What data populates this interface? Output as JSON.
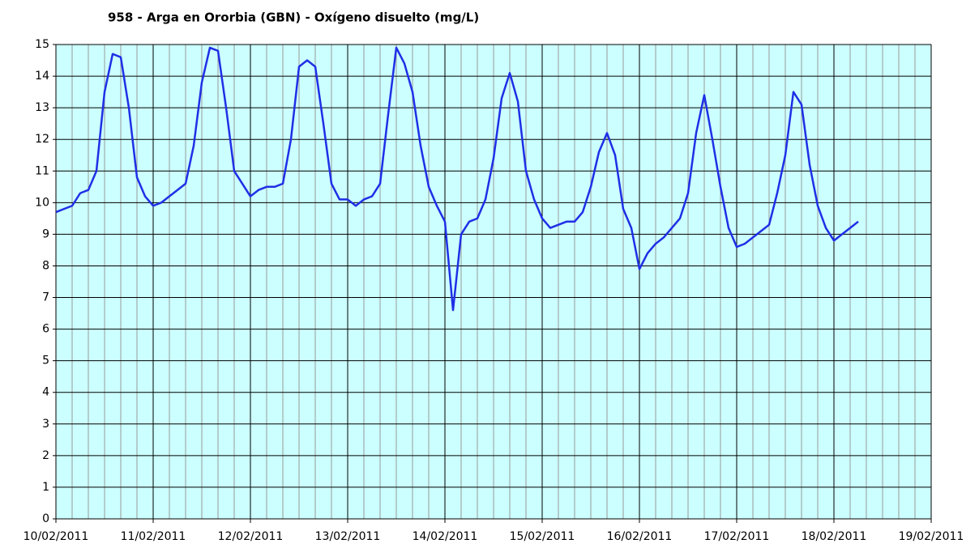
{
  "chart_data": {
    "type": "line",
    "title": "958 - Arga en Ororbia (GBN) - Oxígeno disuelto (mg/L)",
    "categories": [
      "10/02/2011",
      null,
      null,
      null,
      null,
      null,
      null,
      null,
      null,
      null,
      null,
      null,
      "11/02/2011",
      null,
      null,
      null,
      null,
      null,
      null,
      null,
      null,
      null,
      null,
      null,
      "12/02/2011",
      null,
      null,
      null,
      null,
      null,
      null,
      null,
      null,
      null,
      null,
      null,
      "13/02/2011",
      null,
      null,
      null,
      null,
      null,
      null,
      null,
      null,
      null,
      null,
      null,
      "14/02/2011",
      null,
      null,
      null,
      null,
      null,
      null,
      null,
      null,
      null,
      null,
      null,
      "15/02/2011",
      null,
      null,
      null,
      null,
      null,
      null,
      null,
      null,
      null,
      null,
      null,
      "16/02/2011",
      null,
      null,
      null,
      null,
      null,
      null,
      null,
      null,
      null,
      null,
      null,
      "17/02/2011",
      null,
      null,
      null,
      null,
      null,
      null,
      null,
      null,
      null,
      null,
      null,
      "18/02/2011",
      null,
      null,
      null,
      null,
      null,
      null,
      null,
      null,
      null,
      null,
      null,
      "19/02/2011"
    ],
    "series": [
      {
        "color": "#1f2fe6",
        "values": [
          9.7,
          9.8,
          9.9,
          10.3,
          10.4,
          11.0,
          13.5,
          14.7,
          14.6,
          13.0,
          10.8,
          10.2,
          9.9,
          10.0,
          10.2,
          10.4,
          10.6,
          11.8,
          13.8,
          14.9,
          14.8,
          13.0,
          11.0,
          10.6,
          10.2,
          10.4,
          10.5,
          10.5,
          10.6,
          12.0,
          14.3,
          14.5,
          14.3,
          12.5,
          10.6,
          10.1,
          10.1,
          9.9,
          10.1,
          10.2,
          10.6,
          12.8,
          14.9,
          14.4,
          13.5,
          11.8,
          10.5,
          9.9,
          9.4,
          6.6,
          9.0,
          9.4,
          9.5,
          10.1,
          11.4,
          13.3,
          14.1,
          13.2,
          11.0,
          10.1,
          9.5,
          9.2,
          9.3,
          9.4,
          9.4,
          9.7,
          10.5,
          11.6,
          12.2,
          11.5,
          9.8,
          9.2,
          7.9,
          8.4,
          8.7,
          8.9,
          9.2,
          9.5,
          10.3,
          12.2,
          13.4,
          12.0,
          10.5,
          9.2,
          8.6,
          8.7,
          8.9,
          9.1,
          9.3,
          10.3,
          11.5,
          13.5,
          13.1,
          11.2,
          9.9,
          9.2,
          8.8,
          9.0,
          9.2,
          9.4,
          null,
          null,
          null,
          null,
          null,
          null,
          null,
          null,
          null
        ]
      }
    ],
    "ylim": [
      0,
      15
    ],
    "yticks": [
      0,
      1,
      2,
      3,
      4,
      5,
      6,
      7,
      8,
      9,
      10,
      11,
      12,
      13,
      14,
      15
    ],
    "grid": true,
    "background": "#ccffff"
  }
}
